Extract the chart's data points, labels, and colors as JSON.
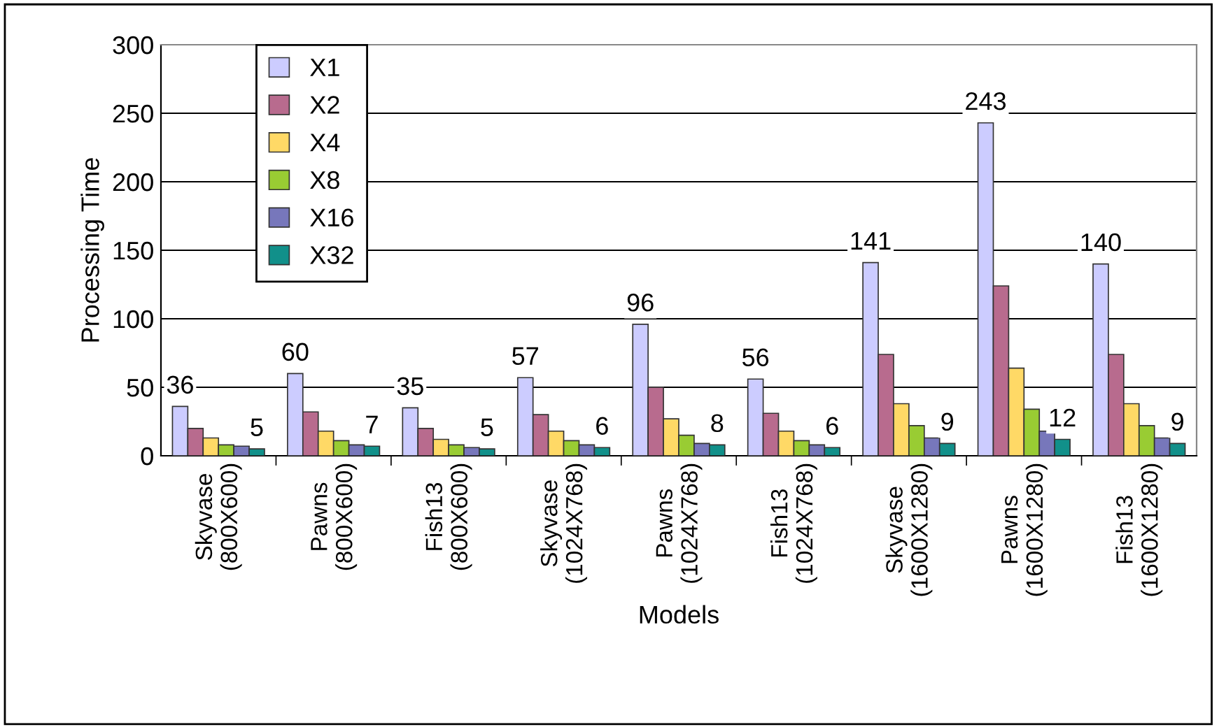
{
  "chart_data": {
    "type": "bar",
    "xlabel": "Models",
    "ylabel": "Processing Time",
    "categories": [
      "Skyvase\n(800X600)",
      "Pawns\n(800X600)",
      "Fish13\n(800X600)",
      "Skyvase\n(1024X768)",
      "Pawns\n(1024X768)",
      "Fish13\n(1024X768)",
      "Skyvase\n(1600X1280)",
      "Pawns\n(1600X1280)",
      "Fish13\n(1600X1280)"
    ],
    "series": [
      {
        "name": "X1",
        "color": "#ccccff",
        "values": [
          36,
          60,
          35,
          57,
          96,
          56,
          141,
          243,
          140
        ],
        "value_labels": [
          "36",
          "60",
          "35",
          "57",
          "96",
          "56",
          "141",
          "243",
          "140"
        ]
      },
      {
        "name": "X2",
        "color": "#b86b8e",
        "values": [
          20,
          32,
          20,
          30,
          50,
          31,
          74,
          124,
          74
        ]
      },
      {
        "name": "X4",
        "color": "#ffd966",
        "values": [
          13,
          18,
          12,
          18,
          27,
          18,
          38,
          64,
          38
        ]
      },
      {
        "name": "X8",
        "color": "#99cc33",
        "values": [
          8,
          11,
          8,
          11,
          15,
          11,
          22,
          34,
          22
        ]
      },
      {
        "name": "X16",
        "color": "#7777bb",
        "values": [
          7,
          8,
          6,
          8,
          9,
          8,
          13,
          18,
          13
        ]
      },
      {
        "name": "X32",
        "color": "#11908a",
        "values": [
          5,
          7,
          5,
          6,
          8,
          6,
          9,
          12,
          9
        ],
        "value_labels": [
          "5",
          "7",
          "5",
          "6",
          "8",
          "6",
          "9",
          "12",
          "9"
        ]
      }
    ],
    "ylim": [
      0,
      300
    ],
    "yticks": [
      0,
      50,
      100,
      150,
      200,
      250,
      300
    ],
    "grid": "y",
    "legend": "top left"
  }
}
